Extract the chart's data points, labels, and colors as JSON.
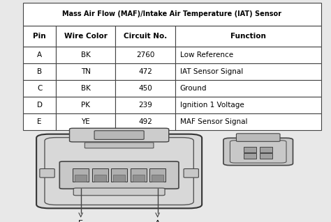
{
  "title": "Mass Air Flow (MAF)/Intake Air Temperature (IAT) Sensor",
  "headers": [
    "Pin",
    "Wire Color",
    "Circuit No.",
    "Function"
  ],
  "rows": [
    [
      "A",
      "BK",
      "2760",
      "Low Reference"
    ],
    [
      "B",
      "TN",
      "472",
      "IAT Sensor Signal"
    ],
    [
      "C",
      "BK",
      "450",
      "Ground"
    ],
    [
      "D",
      "PK",
      "239",
      "Ignition 1 Voltage"
    ],
    [
      "E",
      "YE",
      "492",
      "MAF Sensor Signal"
    ]
  ],
  "bg_color": "#e8e8e8",
  "table_bg": "#ffffff",
  "border_color": "#444444",
  "font_size_title": 7.0,
  "font_size_header": 7.5,
  "font_size_data": 7.5,
  "diagram_label_e": "E",
  "diagram_label_a": "A"
}
